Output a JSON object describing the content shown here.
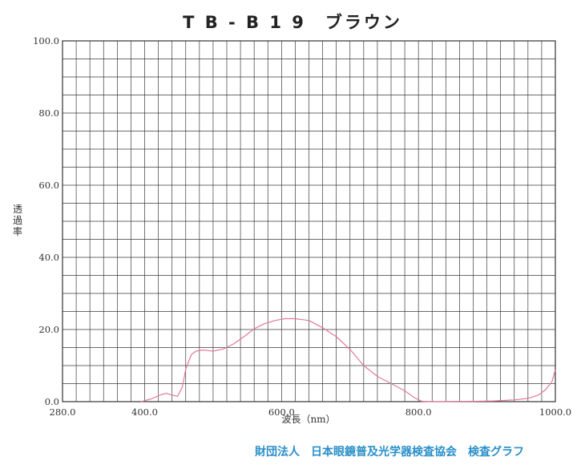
{
  "title": "T B - B 1 9　ブラウン",
  "footer": "財団法人　日本眼鏡普及光学器検査協会　検査グラフ",
  "chart_data": {
    "type": "line",
    "xlabel": "波長（nm）",
    "ylabel": "透過率",
    "xlim": [
      280,
      1000
    ],
    "ylim": [
      0,
      100
    ],
    "x_ticks": [
      "280.0",
      "400.0",
      "600.0",
      "800.0",
      "1000.0"
    ],
    "x_tick_values": [
      280,
      400,
      600,
      800,
      1000
    ],
    "y_ticks": [
      "0.0",
      "20.0",
      "40.0",
      "60.0",
      "80.0",
      "100.0"
    ],
    "y_tick_values": [
      0,
      20,
      40,
      60,
      80,
      100
    ],
    "grid": true,
    "line_color": "#e07a9c",
    "series": [
      {
        "x": [
          395,
          410,
          425,
          432,
          440,
          448,
          455,
          460,
          468,
          475,
          485,
          500,
          515,
          530,
          545,
          560,
          575,
          590,
          605,
          620,
          640,
          660,
          680,
          700,
          720,
          740,
          760,
          780,
          795,
          805,
          820,
          850,
          880,
          910,
          940,
          960,
          975,
          985,
          995,
          1000
        ],
        "y": [
          0.0,
          0.8,
          2.0,
          2.3,
          1.8,
          1.5,
          4.0,
          9.0,
          13.0,
          14.0,
          14.3,
          14.0,
          14.6,
          16.0,
          18.0,
          20.2,
          21.6,
          22.5,
          23.0,
          23.0,
          22.5,
          20.5,
          18.0,
          14.5,
          10.0,
          7.0,
          5.0,
          3.0,
          1.0,
          0.1,
          0.0,
          0.05,
          0.1,
          0.2,
          0.5,
          0.9,
          1.8,
          3.2,
          5.5,
          8.8
        ]
      }
    ]
  }
}
